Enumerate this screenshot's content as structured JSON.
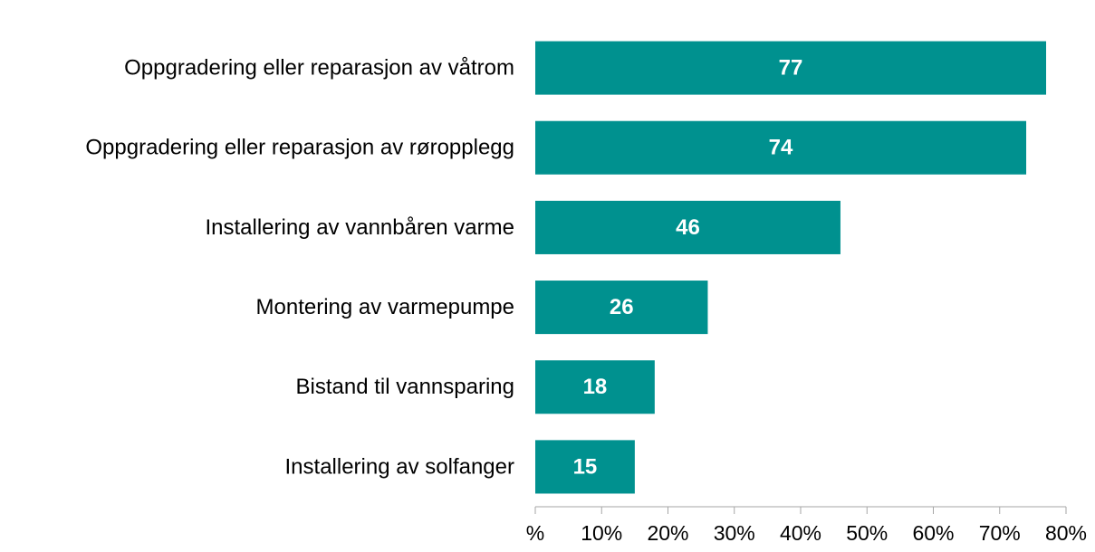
{
  "chart_data": {
    "type": "hbar",
    "categories": [
      "Oppgradering eller reparasjon av våtrom",
      "Oppgradering eller reparasjon av røropplegg",
      "Installering av vannbåren varme",
      "Montering av varmepumpe",
      "Bistand til vannsparing",
      "Installering av solfanger"
    ],
    "values": [
      77,
      74,
      46,
      26,
      18,
      15
    ],
    "color": "#00918f",
    "xlim": [
      0,
      80
    ],
    "xticks": [
      {
        "value": 0,
        "label": "%"
      },
      {
        "value": 10,
        "label": "10%"
      },
      {
        "value": 20,
        "label": "20%"
      },
      {
        "value": 30,
        "label": "30%"
      },
      {
        "value": 40,
        "label": "40%"
      },
      {
        "value": 50,
        "label": "50%"
      },
      {
        "value": 60,
        "label": "60%"
      },
      {
        "value": 70,
        "label": "70%"
      },
      {
        "value": 80,
        "label": "80%"
      }
    ]
  }
}
